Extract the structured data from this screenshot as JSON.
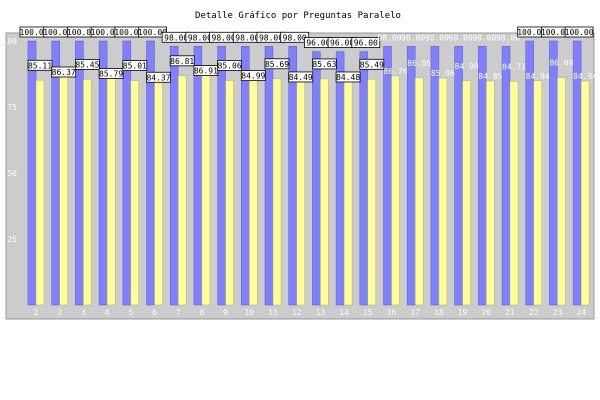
{
  "chart_data": {
    "type": "bar",
    "title": "Detalle Gráfico por Preguntas Paralelo",
    "categories": [
      "1",
      "2",
      "3",
      "4",
      "5",
      "6",
      "7",
      "8",
      "9",
      "10",
      "11",
      "12",
      "13",
      "14",
      "15",
      "16",
      "17",
      "18",
      "19",
      "20",
      "21",
      "22",
      "23",
      "24"
    ],
    "series": [
      {
        "values": [
          100.0,
          100.0,
          100.0,
          100.0,
          100.0,
          100.0,
          98.0,
          98.0,
          98.0,
          98.0,
          98.0,
          98.0,
          96.0,
          96.0,
          96.0,
          98.0,
          98.0,
          98.0,
          98.0,
          98.0,
          98.0,
          100.0,
          100.0,
          100.0
        ],
        "labels": [
          "100.00",
          "100.00",
          "100.00",
          "100.00",
          "100.00",
          "100.00",
          "98.00",
          "98.00",
          "98.00",
          "98.00",
          "98.00",
          "98.00",
          "96.00",
          "96.00",
          "96.00",
          "98.00",
          "98.00",
          "98.00",
          "98.00",
          "98.00",
          "98.00",
          "100.00",
          "100.00",
          "100.00"
        ]
      },
      {
        "values": [
          85.11,
          86.37,
          85.45,
          85.79,
          85.01,
          84.37,
          86.81,
          86.91,
          85.06,
          84.99,
          85.69,
          84.49,
          85.63,
          84.48,
          85.49,
          86.76,
          86.05,
          85.96,
          84.9,
          84.85,
          84.71,
          84.94,
          86.09,
          84.84
        ],
        "labels": [
          "85.11",
          "86.37",
          "85.45",
          "85.79",
          "85.01",
          "84.37",
          "86.81",
          "86.91",
          "85.06",
          "84.99",
          "85.69",
          "84.49",
          "85.63",
          "84.48",
          "85.49",
          "86.76",
          "86.05",
          "85.96",
          "84.90",
          "84.85",
          "84.71",
          "84.94",
          "86.09",
          "84.84"
        ]
      }
    ],
    "yticks": [
      "25",
      "50",
      "75",
      "100"
    ],
    "ylim": [
      0,
      100
    ],
    "grid": false,
    "colors": {
      "plot_bg": "#cccccc",
      "series1": "#8080ff",
      "series2": "#ffff99",
      "box_bg": "#ffffff",
      "text_light": "#ffffff",
      "text_dark": "#000000"
    }
  }
}
